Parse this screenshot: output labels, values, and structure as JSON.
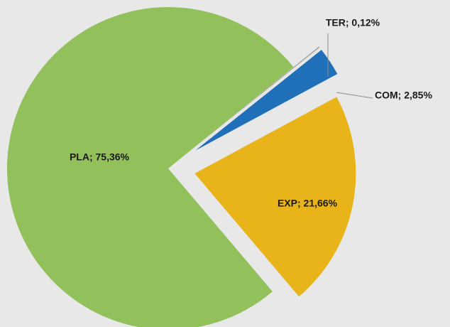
{
  "chart_data": {
    "type": "pie",
    "values": [
      75.36,
      21.66,
      2.85,
      0.12
    ],
    "value_labels": [
      "PLA; 75,36%",
      "EXP; 21,66%",
      "COM; 2,85%",
      "TER; 0,12%"
    ],
    "colors": [
      "#92c05a",
      "#e8b419",
      "#1f6fb9",
      "#a5a5a5"
    ]
  }
}
